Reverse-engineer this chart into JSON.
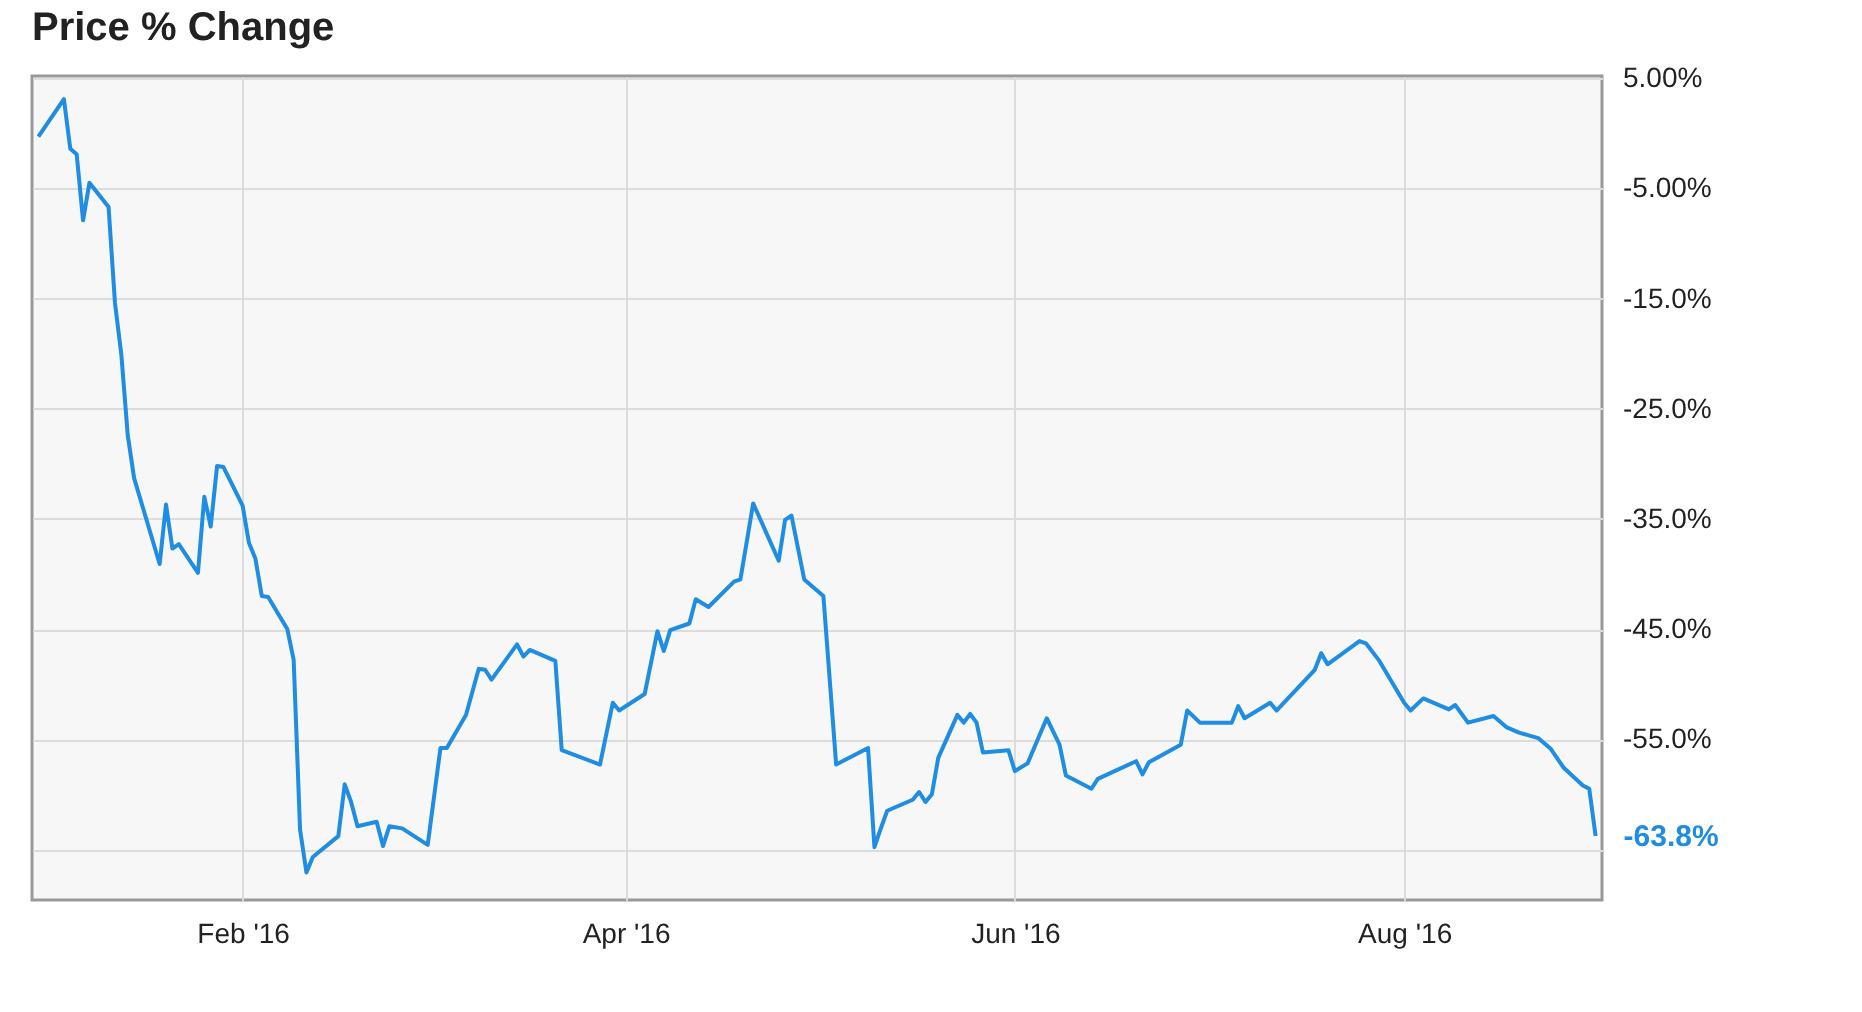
{
  "chart_data": {
    "type": "line",
    "title": "Price % Change",
    "x": [
      "2015-12-31",
      "2016-01-04",
      "2016-01-05",
      "2016-01-06",
      "2016-01-07",
      "2016-01-08",
      "2016-01-11",
      "2016-01-12",
      "2016-01-13",
      "2016-01-14",
      "2016-01-15",
      "2016-01-19",
      "2016-01-20",
      "2016-01-21",
      "2016-01-22",
      "2016-01-25",
      "2016-01-26",
      "2016-01-27",
      "2016-01-28",
      "2016-01-29",
      "2016-02-01",
      "2016-02-02",
      "2016-02-03",
      "2016-02-04",
      "2016-02-05",
      "2016-02-08",
      "2016-02-09",
      "2016-02-10",
      "2016-02-11",
      "2016-02-12",
      "2016-02-16",
      "2016-02-17",
      "2016-02-18",
      "2016-02-19",
      "2016-02-22",
      "2016-02-23",
      "2016-02-24",
      "2016-02-26",
      "2016-03-01",
      "2016-03-03",
      "2016-03-04",
      "2016-03-07",
      "2016-03-09",
      "2016-03-10",
      "2016-03-11",
      "2016-03-15",
      "2016-03-16",
      "2016-03-17",
      "2016-03-21",
      "2016-03-22",
      "2016-03-28",
      "2016-03-30",
      "2016-03-31",
      "2016-04-04",
      "2016-04-06",
      "2016-04-07",
      "2016-04-08",
      "2016-04-11",
      "2016-04-12",
      "2016-04-14",
      "2016-04-18",
      "2016-04-19",
      "2016-04-21",
      "2016-04-25",
      "2016-04-26",
      "2016-04-27",
      "2016-04-29",
      "2016-05-02",
      "2016-05-04",
      "2016-05-09",
      "2016-05-10",
      "2016-05-11",
      "2016-05-12",
      "2016-05-16",
      "2016-05-17",
      "2016-05-18",
      "2016-05-19",
      "2016-05-20",
      "2016-05-23",
      "2016-05-24",
      "2016-05-25",
      "2016-05-26",
      "2016-05-27",
      "2016-05-31",
      "2016-06-01",
      "2016-06-03",
      "2016-06-06",
      "2016-06-07",
      "2016-06-08",
      "2016-06-09",
      "2016-06-13",
      "2016-06-14",
      "2016-06-20",
      "2016-06-21",
      "2016-06-22",
      "2016-06-27",
      "2016-06-28",
      "2016-06-30",
      "2016-07-05",
      "2016-07-06",
      "2016-07-07",
      "2016-07-11",
      "2016-07-12",
      "2016-07-18",
      "2016-07-19",
      "2016-07-20",
      "2016-07-25",
      "2016-07-26",
      "2016-07-28",
      "2016-08-01",
      "2016-08-02",
      "2016-08-04",
      "2016-08-08",
      "2016-08-09",
      "2016-08-11",
      "2016-08-15",
      "2016-08-17",
      "2016-08-19",
      "2016-08-22",
      "2016-08-24",
      "2016-08-26",
      "2016-08-29",
      "2016-08-30",
      "2016-08-31"
    ],
    "series": [
      {
        "color": "#1f8ce6",
        "values": [
          -0.3,
          3.1,
          -1.4,
          -1.9,
          -7.9,
          -4.5,
          -6.7,
          -15.4,
          -20.1,
          -27.4,
          -31.3,
          -39.1,
          -33.7,
          -37.7,
          -37.3,
          -39.9,
          -33.0,
          -35.7,
          -30.2,
          -30.3,
          -33.8,
          -37.2,
          -38.6,
          -42.0,
          -42.1,
          -45.0,
          -47.8,
          -63.2,
          -67.1,
          -65.7,
          -63.8,
          -59.1,
          -60.7,
          -62.9,
          -62.5,
          -64.7,
          -62.9,
          -63.1,
          -64.6,
          -55.8,
          -55.8,
          -52.8,
          -48.6,
          -48.7,
          -49.6,
          -46.4,
          -47.5,
          -46.9,
          -47.9,
          -56.0,
          -57.3,
          -51.7,
          -52.4,
          -50.9,
          -45.2,
          -47.0,
          -45.1,
          -44.5,
          -42.3,
          -43.0,
          -40.7,
          -40.5,
          -33.6,
          -38.8,
          -35.1,
          -34.7,
          -40.5,
          -42.0,
          -57.3,
          -55.8,
          -64.8,
          -63.1,
          -61.5,
          -60.5,
          -59.8,
          -60.7,
          -60.0,
          -56.7,
          -52.8,
          -53.5,
          -52.7,
          -53.5,
          -56.2,
          -56.0,
          -57.9,
          -57.2,
          -53.1,
          -54.3,
          -55.5,
          -58.3,
          -59.5,
          -58.6,
          -57.0,
          -58.2,
          -57.1,
          -55.5,
          -52.4,
          -53.5,
          -53.5,
          -52.0,
          -53.1,
          -51.7,
          -52.4,
          -48.7,
          -47.2,
          -48.2,
          -46.1,
          -46.3,
          -47.8,
          -51.7,
          -52.4,
          -51.3,
          -52.3,
          -51.9,
          -53.5,
          -52.9,
          -53.9,
          -54.4,
          -54.9,
          -55.9,
          -57.6,
          -59.2,
          -59.5,
          -63.8
        ]
      }
    ],
    "xlim": [
      "2015-12-30",
      "2016-09-01"
    ],
    "xticks": [
      {
        "value": "2016-02-01",
        "label": "Feb '16"
      },
      {
        "value": "2016-04-01",
        "label": "Apr '16"
      },
      {
        "value": "2016-06-01",
        "label": "Jun '16"
      },
      {
        "value": "2016-08-01",
        "label": "Aug '16"
      }
    ],
    "ylim": [
      -69.6,
      5.2
    ],
    "yticks": [
      {
        "value": 5,
        "label": "5.00%"
      },
      {
        "value": -5,
        "label": "-5.00%"
      },
      {
        "value": -15,
        "label": "-15.0%"
      },
      {
        "value": -25,
        "label": "-25.0%"
      },
      {
        "value": -35,
        "label": "-35.0%"
      },
      {
        "value": -45,
        "label": "-45.0%"
      },
      {
        "value": -55,
        "label": "-55.0%"
      },
      {
        "value": -65,
        "label": null
      }
    ],
    "grid": true,
    "annotations": [
      {
        "text": "-63.8%",
        "x": "2016-08-31",
        "y": -63.8
      }
    ]
  }
}
